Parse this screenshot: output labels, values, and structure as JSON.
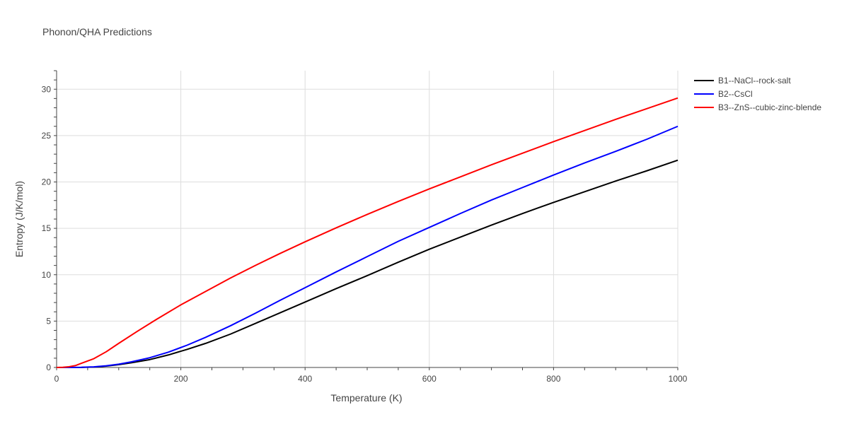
{
  "chart_data": {
    "type": "line",
    "title": "Phonon/QHA Predictions",
    "xlabel": "Temperature (K)",
    "ylabel": "Entropy (J/K/mol)",
    "xlim": [
      0,
      1000
    ],
    "ylim": [
      0,
      32
    ],
    "xticks": [
      0,
      200,
      400,
      600,
      800,
      1000
    ],
    "yticks": [
      0,
      5,
      10,
      15,
      20,
      25,
      30
    ],
    "grid": true,
    "legend_position": "top-right, outside plot",
    "series": [
      {
        "name": "B1--NaCl--rock-salt",
        "color": "#000000",
        "x": [
          0,
          20,
          40,
          60,
          80,
          100,
          120,
          150,
          180,
          210,
          240,
          280,
          320,
          360,
          400,
          450,
          500,
          550,
          600,
          650,
          700,
          750,
          800,
          850,
          900,
          950,
          1000
        ],
        "y": [
          0,
          0.0,
          0.01,
          0.05,
          0.15,
          0.3,
          0.5,
          0.85,
          1.35,
          1.95,
          2.6,
          3.6,
          4.75,
          5.9,
          7.05,
          8.5,
          9.9,
          11.35,
          12.75,
          14.05,
          15.35,
          16.6,
          17.8,
          18.95,
          20.1,
          21.2,
          22.35
        ]
      },
      {
        "name": "B2--CsCl",
        "color": "#0000ff",
        "x": [
          0,
          20,
          40,
          60,
          80,
          100,
          120,
          150,
          180,
          210,
          240,
          280,
          320,
          360,
          400,
          450,
          500,
          550,
          600,
          650,
          700,
          750,
          800,
          850,
          900,
          950,
          1000
        ],
        "y": [
          0,
          0.0,
          0.02,
          0.07,
          0.18,
          0.35,
          0.6,
          1.05,
          1.65,
          2.4,
          3.25,
          4.5,
          5.85,
          7.25,
          8.6,
          10.3,
          11.95,
          13.6,
          15.1,
          16.6,
          18.05,
          19.4,
          20.75,
          22.05,
          23.3,
          24.6,
          26.0
        ]
      },
      {
        "name": "B3--ZnS--cubic-zinc-blende",
        "color": "#ff0000",
        "x": [
          0,
          10,
          20,
          30,
          40,
          50,
          60,
          80,
          100,
          130,
          160,
          200,
          240,
          280,
          320,
          360,
          400,
          450,
          500,
          550,
          600,
          650,
          700,
          750,
          800,
          850,
          900,
          950,
          1000
        ],
        "y": [
          0,
          0.02,
          0.08,
          0.2,
          0.45,
          0.7,
          0.95,
          1.7,
          2.6,
          3.9,
          5.15,
          6.75,
          8.2,
          9.65,
          11.0,
          12.3,
          13.55,
          15.05,
          16.5,
          17.9,
          19.25,
          20.55,
          21.85,
          23.1,
          24.35,
          25.55,
          26.75,
          27.9,
          29.05
        ]
      }
    ]
  }
}
